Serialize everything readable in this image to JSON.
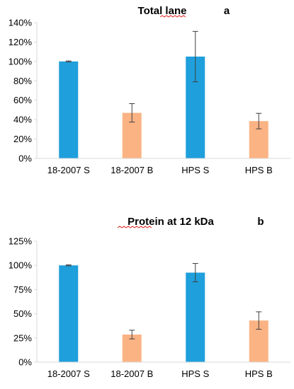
{
  "chart_data": [
    {
      "type": "bar",
      "title": "Total lane",
      "panel_label": "a",
      "categories": [
        "18-2007 S",
        "18-2007 B",
        "HPS S",
        "HPS B"
      ],
      "values": [
        100,
        47,
        105,
        38.5
      ],
      "errors": [
        0.5,
        9.5,
        26,
        8
      ],
      "bar_colors": [
        "#1f9fdc",
        "#fbb384",
        "#1f9fdc",
        "#fbb384"
      ],
      "ylim": [
        0,
        140
      ],
      "yticks": [
        0,
        20,
        40,
        60,
        80,
        100,
        120,
        140
      ],
      "ytick_labels": [
        "0%",
        "20%",
        "40%",
        "60%",
        "80%",
        "100%",
        "120%",
        "140%"
      ],
      "xlabel": "",
      "ylabel": "",
      "grid": false
    },
    {
      "type": "bar",
      "title": "Protein at 12 kDa",
      "panel_label": "b",
      "categories": [
        "18-2007 S",
        "18-2007 B",
        "HPS S",
        "HPS B"
      ],
      "values": [
        100,
        28.5,
        92.5,
        43
      ],
      "errors": [
        0.5,
        4.5,
        9.5,
        9
      ],
      "bar_colors": [
        "#1f9fdc",
        "#fbb384",
        "#1f9fdc",
        "#fbb384"
      ],
      "ylim": [
        0,
        125
      ],
      "yticks": [
        0,
        25,
        50,
        75,
        100,
        125
      ],
      "ytick_labels": [
        "0%",
        "25%",
        "50%",
        "75%",
        "100%",
        "125%"
      ],
      "xlabel": "",
      "ylabel": "",
      "grid": false
    }
  ]
}
